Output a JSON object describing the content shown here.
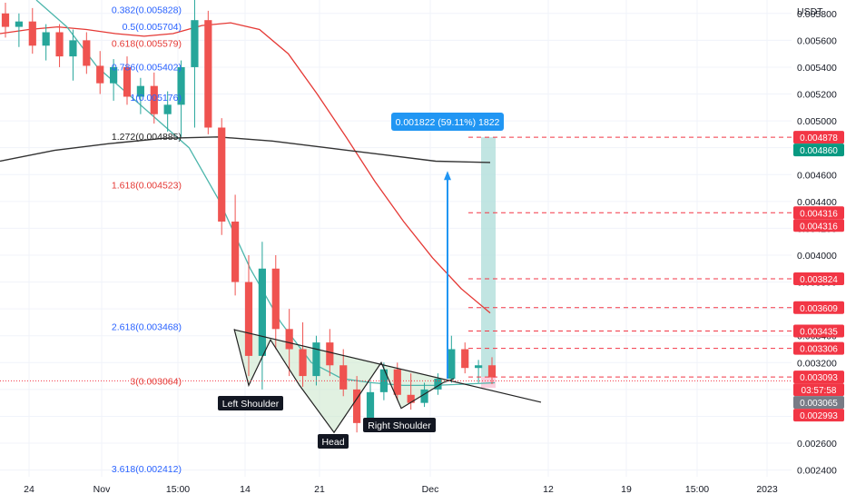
{
  "currency": "USDT",
  "colors": {
    "up": "#26a69a",
    "down": "#ef5350",
    "ma_red": "#e53935",
    "ma_teal": "#4db6ac",
    "ma_black": "#333333",
    "fib_red": "#e53935",
    "fib_blue": "#2962ff",
    "measure": "#2196f3",
    "pattern_fill": "#c8e6c9",
    "target_fill": "#b2dfdb",
    "price_red": "#f23645",
    "price_green": "#089981",
    "price_gray": "#787b86"
  },
  "chart_data": {
    "type": "candlestick",
    "y_range": [
      0.00235,
      0.0059
    ],
    "price_axis_ticks": [
      "0.005800",
      "0.005600",
      "0.005400",
      "0.005200",
      "0.005000",
      "0.004800",
      "0.004600",
      "0.004400",
      "0.004200",
      "0.004000",
      "0.003800",
      "0.003600",
      "0.003400",
      "0.003200",
      "0.003000",
      "0.002800",
      "0.002600",
      "0.002400"
    ],
    "time_axis_ticks": [
      "24",
      "Nov",
      "15:00",
      "14",
      "21",
      "Dec",
      "12",
      "19",
      "15:00",
      "2023"
    ],
    "fib_levels": [
      {
        "label": "0.382(0.005828)",
        "value": 0.005828,
        "color": "#2962ff"
      },
      {
        "label": "0.5(0.005704)",
        "value": 0.005704,
        "color": "#2962ff"
      },
      {
        "label": "0.618(0.005579)",
        "value": 0.005579,
        "color": "#e53935"
      },
      {
        "label": "0.786(0.005402)",
        "value": 0.005402,
        "color": "#2962ff"
      },
      {
        "label": "1(0.005176)",
        "value": 0.005176,
        "color": "#2962ff"
      },
      {
        "label": "1.272(0.004885)",
        "value": 0.004885,
        "color": "#222222"
      },
      {
        "label": "1.618(0.004523)",
        "value": 0.004523,
        "color": "#e53935"
      },
      {
        "label": "2.618(0.003468)",
        "value": 0.003468,
        "color": "#2962ff"
      },
      {
        "label": "3(0.003064)",
        "value": 0.003064,
        "color": "#e53935"
      },
      {
        "label": "3.618(0.002412)",
        "value": 0.002412,
        "color": "#2962ff"
      }
    ],
    "pattern_labels": [
      "Left Shoulder",
      "Head",
      "Right Shoulder"
    ],
    "measure_label": "0.001822 (59.11%) 1822",
    "price_tags": [
      {
        "label": "0.004878",
        "value": 0.004878,
        "color": "#f23645"
      },
      {
        "label": "0.004860",
        "value": 0.00486,
        "color": "#089981"
      },
      {
        "label": "0.004316",
        "value": 0.004316,
        "color": "#f23645"
      },
      {
        "label": "0.004316",
        "value": 0.004316,
        "color": "#f23645"
      },
      {
        "label": "0.003824",
        "value": 0.003824,
        "color": "#f23645"
      },
      {
        "label": "0.003609",
        "value": 0.003609,
        "color": "#f23645"
      },
      {
        "label": "0.003435",
        "value": 0.003435,
        "color": "#f23645"
      },
      {
        "label": "0.003306",
        "value": 0.003306,
        "color": "#f23645"
      },
      {
        "label": "0.003093",
        "value": 0.003093,
        "color": "#f23645"
      },
      {
        "label": "03:57:58",
        "value": 0.00301,
        "color": "#f23645"
      },
      {
        "label": "0.003065",
        "value": 0.002935,
        "color": "#787b86"
      },
      {
        "label": "0.002993",
        "value": 0.002855,
        "color": "#f23645"
      }
    ],
    "target_levels": [
      0.004878,
      0.004316,
      0.003824,
      0.003609,
      0.003435,
      0.003306,
      0.003093
    ],
    "neckline": {
      "from": 0.003445,
      "to": 0.002905
    },
    "pattern_pivots": [
      0.00345,
      0.00303,
      0.00337,
      0.00303,
      0.00268,
      0.0032,
      0.00286,
      0.00305,
      0.00308
    ],
    "ma_red": [
      0.00565,
      0.00568,
      0.0057,
      0.00568,
      0.00565,
      0.00563,
      0.00565,
      0.00571,
      0.00573,
      0.00568,
      0.0055,
      0.0052,
      0.00488,
      0.00455,
      0.00425,
      0.00398,
      0.00375,
      0.00357
    ],
    "ma_teal": [
      0.0059,
      0.0057,
      0.0054,
      0.0052,
      0.005,
      0.0048,
      0.0044,
      0.0039,
      0.0035,
      0.0032,
      0.00308,
      0.00305,
      0.00303,
      0.00303,
      0.00304,
      0.00305
    ],
    "ma_black": [
      0.0047,
      0.00478,
      0.00483,
      0.00487,
      0.00488,
      0.00485,
      0.0048,
      0.00475,
      0.0047,
      0.00469
    ],
    "candles": [
      {
        "o": 0.0058,
        "h": 0.00588,
        "l": 0.00562,
        "c": 0.0057
      },
      {
        "o": 0.0057,
        "h": 0.0058,
        "l": 0.00555,
        "c": 0.00574
      },
      {
        "o": 0.00574,
        "h": 0.00584,
        "l": 0.0055,
        "c": 0.00556
      },
      {
        "o": 0.00556,
        "h": 0.00572,
        "l": 0.00545,
        "c": 0.00566
      },
      {
        "o": 0.00566,
        "h": 0.00572,
        "l": 0.0054,
        "c": 0.00548
      },
      {
        "o": 0.00548,
        "h": 0.00568,
        "l": 0.0053,
        "c": 0.0056
      },
      {
        "o": 0.0056,
        "h": 0.00566,
        "l": 0.00535,
        "c": 0.00541
      },
      {
        "o": 0.00541,
        "h": 0.00552,
        "l": 0.0052,
        "c": 0.00528
      },
      {
        "o": 0.00528,
        "h": 0.00546,
        "l": 0.00515,
        "c": 0.0054
      },
      {
        "o": 0.0054,
        "h": 0.00548,
        "l": 0.00512,
        "c": 0.00518
      },
      {
        "o": 0.00518,
        "h": 0.00532,
        "l": 0.00505,
        "c": 0.00526
      },
      {
        "o": 0.00526,
        "h": 0.00536,
        "l": 0.00498,
        "c": 0.00505
      },
      {
        "o": 0.00505,
        "h": 0.00522,
        "l": 0.00492,
        "c": 0.00512
      },
      {
        "o": 0.00512,
        "h": 0.00545,
        "l": 0.00488,
        "c": 0.0054
      },
      {
        "o": 0.0054,
        "h": 0.0059,
        "l": 0.00495,
        "c": 0.00575
      },
      {
        "o": 0.00575,
        "h": 0.00582,
        "l": 0.0049,
        "c": 0.00495
      },
      {
        "o": 0.00495,
        "h": 0.00502,
        "l": 0.00415,
        "c": 0.00425
      },
      {
        "o": 0.00425,
        "h": 0.00445,
        "l": 0.0037,
        "c": 0.0038
      },
      {
        "o": 0.0038,
        "h": 0.004,
        "l": 0.0031,
        "c": 0.00325
      },
      {
        "o": 0.00325,
        "h": 0.0041,
        "l": 0.003,
        "c": 0.0039
      },
      {
        "o": 0.0039,
        "h": 0.004,
        "l": 0.0033,
        "c": 0.00345
      },
      {
        "o": 0.00345,
        "h": 0.0036,
        "l": 0.0031,
        "c": 0.0033
      },
      {
        "o": 0.0033,
        "h": 0.0035,
        "l": 0.00302,
        "c": 0.0031
      },
      {
        "o": 0.0031,
        "h": 0.0034,
        "l": 0.00303,
        "c": 0.00335
      },
      {
        "o": 0.00335,
        "h": 0.00345,
        "l": 0.0031,
        "c": 0.00318
      },
      {
        "o": 0.00318,
        "h": 0.0033,
        "l": 0.00295,
        "c": 0.003
      },
      {
        "o": 0.003,
        "h": 0.0031,
        "l": 0.00268,
        "c": 0.00275
      },
      {
        "o": 0.00275,
        "h": 0.00305,
        "l": 0.0027,
        "c": 0.00298
      },
      {
        "o": 0.00298,
        "h": 0.0032,
        "l": 0.00292,
        "c": 0.00315
      },
      {
        "o": 0.00315,
        "h": 0.0032,
        "l": 0.00292,
        "c": 0.00296
      },
      {
        "o": 0.00296,
        "h": 0.00312,
        "l": 0.00285,
        "c": 0.0029
      },
      {
        "o": 0.0029,
        "h": 0.00305,
        "l": 0.00287,
        "c": 0.003
      },
      {
        "o": 0.003,
        "h": 0.00312,
        "l": 0.00296,
        "c": 0.00308
      },
      {
        "o": 0.00308,
        "h": 0.0034,
        "l": 0.00305,
        "c": 0.0033
      },
      {
        "o": 0.0033,
        "h": 0.00335,
        "l": 0.00312,
        "c": 0.00316
      },
      {
        "o": 0.00316,
        "h": 0.00322,
        "l": 0.00305,
        "c": 0.00318
      },
      {
        "o": 0.00318,
        "h": 0.00324,
        "l": 0.00304,
        "c": 0.00309
      }
    ]
  }
}
